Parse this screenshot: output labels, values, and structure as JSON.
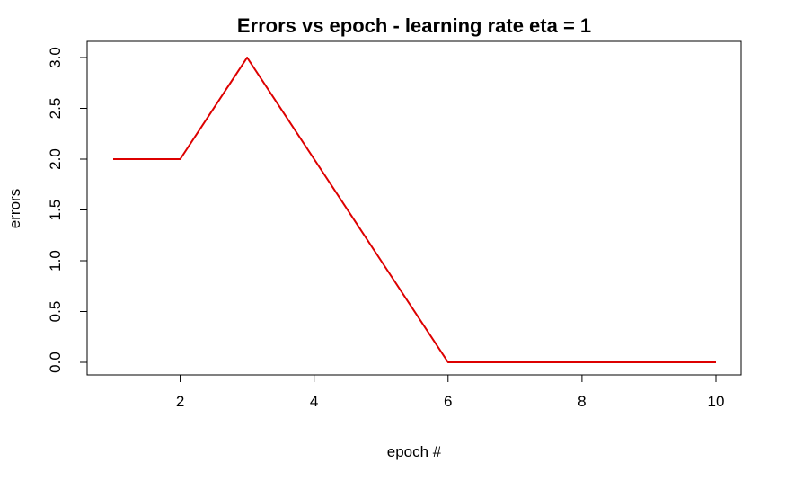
{
  "chart_data": {
    "type": "line",
    "title": "Errors vs epoch - learning rate eta = 1",
    "xlabel": "epoch #",
    "ylabel": "errors",
    "xlim": [
      1,
      10
    ],
    "ylim": [
      0,
      3
    ],
    "x_ticks": [
      2,
      4,
      6,
      8,
      10
    ],
    "x_tick_labels": [
      "2",
      "4",
      "6",
      "8",
      "10"
    ],
    "y_ticks": [
      0,
      0.5,
      1,
      1.5,
      2,
      2.5,
      3
    ],
    "y_tick_labels": [
      "0.0",
      "0.5",
      "1.0",
      "1.5",
      "2.0",
      "2.5",
      "3.0"
    ],
    "grid": false,
    "series": [
      {
        "color": "#dd0000",
        "x": [
          1,
          2,
          3,
          4,
          5,
          6,
          7,
          8,
          9,
          10
        ],
        "values": [
          2,
          2,
          3,
          2,
          1,
          0,
          0,
          0,
          0,
          0
        ]
      }
    ]
  }
}
